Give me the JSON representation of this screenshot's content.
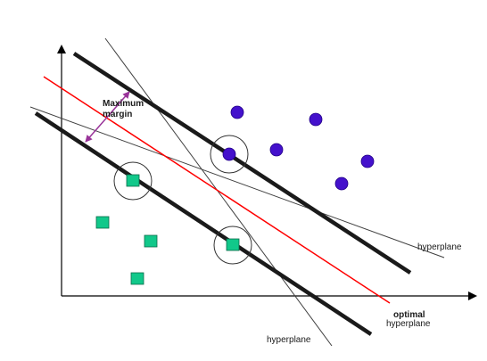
{
  "labels": {
    "margin_line1": "Maximum",
    "margin_line2": "margin",
    "hyperplane_right": "hyperplane",
    "hyperplane_bottom": "hyperplane",
    "optimal_line1": "optimal",
    "optimal_line2": "hyperplane"
  },
  "colors": {
    "axis": "#000000",
    "support_line": "#1a1a1a",
    "other_hyperplane": "#404040",
    "optimal_hyperplane": "#ff0000",
    "margin_arrow": "#993399",
    "circle_class": "#4411cc",
    "square_class": "#11c88a"
  }
}
